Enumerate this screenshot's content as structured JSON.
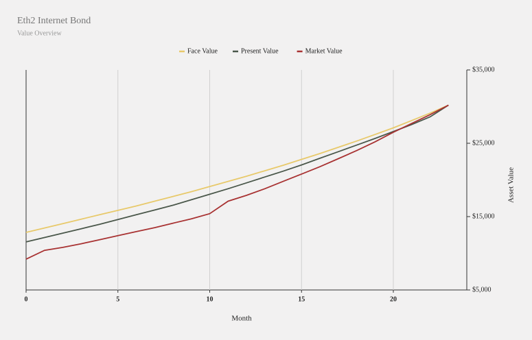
{
  "chart_data": {
    "type": "line",
    "title": "Eth2 Internet Bond",
    "subtitle": "Value Overview",
    "x_label": "Month",
    "y_label": "Asset Value",
    "x": [
      0,
      1,
      2,
      3,
      4,
      5,
      6,
      7,
      8,
      9,
      10,
      11,
      12,
      13,
      14,
      15,
      16,
      17,
      18,
      19,
      20,
      21,
      22,
      23
    ],
    "series": [
      {
        "name": "Face Value",
        "color": "#e8c96a",
        "values": [
          12850,
          13450,
          14050,
          14650,
          15250,
          15850,
          16450,
          17100,
          17750,
          18400,
          19100,
          19800,
          20500,
          21250,
          22000,
          22800,
          23600,
          24450,
          25300,
          26200,
          27100,
          28100,
          29100,
          30200
        ]
      },
      {
        "name": "Present Value",
        "color": "#4a574a",
        "values": [
          11550,
          12150,
          12750,
          13350,
          13950,
          14600,
          15250,
          15900,
          16550,
          17300,
          18050,
          18800,
          19600,
          20400,
          21200,
          22050,
          22950,
          23850,
          24750,
          25650,
          26600,
          27550,
          28600,
          30200
        ]
      },
      {
        "name": "Market Value",
        "color": "#a83232",
        "values": [
          9200,
          10400,
          10800,
          11300,
          11850,
          12400,
          12950,
          13500,
          14100,
          14700,
          15400,
          17100,
          17900,
          18800,
          19800,
          20800,
          21800,
          22900,
          24000,
          25200,
          26500,
          27700,
          28900,
          30200
        ]
      }
    ],
    "xlim": [
      0,
      24
    ],
    "xticks": [
      0,
      5,
      10,
      15,
      20
    ],
    "ylim": [
      5000,
      35000
    ],
    "yticks": [
      {
        "value": 5000,
        "label": "$5,000"
      },
      {
        "value": 15000,
        "label": "$15,000"
      },
      {
        "value": 25000,
        "label": "$25,000"
      },
      {
        "value": 35000,
        "label": "$35,000"
      }
    ],
    "grid": true,
    "legend": "top"
  }
}
